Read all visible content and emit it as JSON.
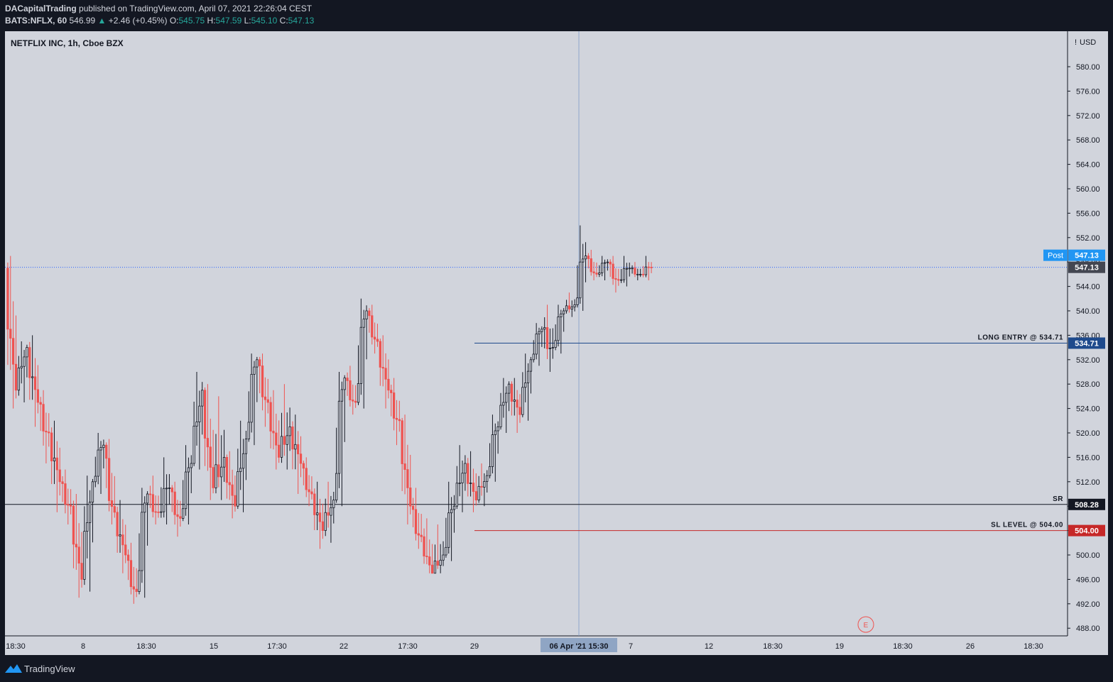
{
  "header": {
    "publisher": "DACapitalTrading",
    "published_text": "published on TradingView.com, April 07, 2021 22:26:04 CEST",
    "symbol": "BATS:NFLX, 60",
    "last": "546.99",
    "change": "+2.46 (+0.45%)",
    "open_label": "O:",
    "open": "545.75",
    "high_label": "H:",
    "high": "547.59",
    "low_label": "L:",
    "low": "545.10",
    "close_label": "C:",
    "close": "547.13"
  },
  "legend": "NETFLIX INC, 1h, Cboe BZX",
  "footer": {
    "brand": "TradingView"
  },
  "colors": {
    "background": "#d1d4dc",
    "up_candle": "#131722",
    "down_candle": "#ef5350",
    "entry_line": "#1e4a8c",
    "sl_line": "#c62828",
    "sr_line": "#131722",
    "post_badge": "#2196f3"
  },
  "chart_data": {
    "type": "candlestick",
    "title": "NETFLIX INC, 1h, Cboe BZX",
    "ylabel": "USD",
    "ylim": [
      486,
      582
    ],
    "y_ticks": [
      "580.00",
      "576.00",
      "572.00",
      "568.00",
      "564.00",
      "560.00",
      "556.00",
      "552.00",
      "548.00",
      "544.00",
      "540.00",
      "536.00",
      "532.00",
      "528.00",
      "524.00",
      "520.00",
      "516.00",
      "512.00",
      "508.00",
      "504.00",
      "500.00",
      "496.00",
      "492.00",
      "488.00"
    ],
    "x_ticks": [
      "18:30",
      "8",
      "18:30",
      "15",
      "17:30",
      "22",
      "17:30",
      "29",
      "06 Apr '21",
      "15:30",
      "7",
      "12",
      "18:30",
      "19",
      "18:30",
      "26",
      "18:30"
    ],
    "crosshair_label": "06 Apr '21   15:30",
    "last_price": 547.13,
    "post_label": "Post",
    "post_price": "547.13",
    "last_price_label": "547.13",
    "levels": [
      {
        "name": "LONG ENTRY @ 534.71",
        "price": 534.71,
        "label": "534.71"
      },
      {
        "name": "SR",
        "price": 508.28,
        "label": "508.28"
      },
      {
        "name": "SL LEVEL @ 504.00",
        "price": 504.0,
        "label": "504.00"
      }
    ],
    "earnings_marker": "E",
    "sessions": [
      {
        "o": 547,
        "c": 527,
        "h": 549,
        "l": 524
      },
      {
        "o": 527,
        "c": 534,
        "h": 535,
        "l": 525
      },
      {
        "o": 534,
        "c": 525,
        "h": 536,
        "l": 521
      },
      {
        "o": 525,
        "c": 520,
        "h": 527,
        "l": 515
      },
      {
        "o": 520,
        "c": 512,
        "h": 522,
        "l": 507
      },
      {
        "o": 512,
        "c": 508,
        "h": 514,
        "l": 505
      },
      {
        "o": 508,
        "c": 496,
        "h": 510,
        "l": 493
      },
      {
        "o": 496,
        "c": 512,
        "h": 513,
        "l": 494
      },
      {
        "o": 512,
        "c": 518,
        "h": 520,
        "l": 510
      },
      {
        "o": 518,
        "c": 507,
        "h": 519,
        "l": 505
      },
      {
        "o": 507,
        "c": 500,
        "h": 509,
        "l": 497
      },
      {
        "o": 500,
        "c": 494,
        "h": 502,
        "l": 492
      },
      {
        "o": 494,
        "c": 510,
        "h": 511,
        "l": 493
      },
      {
        "o": 510,
        "c": 507,
        "h": 513,
        "l": 505
      },
      {
        "o": 507,
        "c": 511,
        "h": 516,
        "l": 505
      },
      {
        "o": 511,
        "c": 506,
        "h": 512,
        "l": 503
      },
      {
        "o": 506,
        "c": 515,
        "h": 518,
        "l": 505
      },
      {
        "o": 515,
        "c": 527,
        "h": 530,
        "l": 514
      },
      {
        "o": 527,
        "c": 511,
        "h": 528,
        "l": 509
      },
      {
        "o": 511,
        "c": 516,
        "h": 526,
        "l": 509
      },
      {
        "o": 516,
        "c": 508,
        "h": 517,
        "l": 506
      },
      {
        "o": 508,
        "c": 519,
        "h": 522,
        "l": 507
      },
      {
        "o": 519,
        "c": 532,
        "h": 533,
        "l": 518
      },
      {
        "o": 532,
        "c": 525,
        "h": 533,
        "l": 521
      },
      {
        "o": 525,
        "c": 516,
        "h": 527,
        "l": 514
      },
      {
        "o": 516,
        "c": 521,
        "h": 528,
        "l": 514
      },
      {
        "o": 521,
        "c": 515,
        "h": 523,
        "l": 510
      },
      {
        "o": 515,
        "c": 510,
        "h": 516,
        "l": 508
      },
      {
        "o": 510,
        "c": 504,
        "h": 512,
        "l": 501
      },
      {
        "o": 504,
        "c": 509,
        "h": 512,
        "l": 502
      },
      {
        "o": 509,
        "c": 529,
        "h": 530,
        "l": 508
      },
      {
        "o": 529,
        "c": 525,
        "h": 531,
        "l": 523
      },
      {
        "o": 525,
        "c": 540,
        "h": 542,
        "l": 524
      },
      {
        "o": 540,
        "c": 535,
        "h": 541,
        "l": 533
      },
      {
        "o": 535,
        "c": 527,
        "h": 536,
        "l": 524
      },
      {
        "o": 527,
        "c": 522,
        "h": 529,
        "l": 518
      },
      {
        "o": 522,
        "c": 508,
        "h": 523,
        "l": 505
      },
      {
        "o": 508,
        "c": 503,
        "h": 511,
        "l": 501
      },
      {
        "o": 503,
        "c": 497,
        "h": 506,
        "l": 497
      },
      {
        "o": 497,
        "c": 500,
        "h": 505,
        "l": 497
      },
      {
        "o": 500,
        "c": 508,
        "h": 512,
        "l": 499
      },
      {
        "o": 508,
        "c": 515,
        "h": 518,
        "l": 507
      },
      {
        "o": 515,
        "c": 509,
        "h": 517,
        "l": 507
      },
      {
        "o": 509,
        "c": 513,
        "h": 515,
        "l": 508
      },
      {
        "o": 513,
        "c": 521,
        "h": 523,
        "l": 512
      },
      {
        "o": 521,
        "c": 528,
        "h": 529,
        "l": 520
      },
      {
        "o": 528,
        "c": 523,
        "h": 529,
        "l": 520
      },
      {
        "o": 523,
        "c": 532,
        "h": 533,
        "l": 522
      },
      {
        "o": 532,
        "c": 537,
        "h": 538,
        "l": 531
      },
      {
        "o": 537,
        "c": 534,
        "h": 541,
        "l": 530
      },
      {
        "o": 534,
        "c": 540,
        "h": 541,
        "l": 533
      },
      {
        "o": 540,
        "c": 541,
        "h": 543,
        "l": 539
      },
      {
        "o": 541,
        "c": 549,
        "h": 554,
        "l": 540
      },
      {
        "o": 549,
        "c": 546,
        "h": 550,
        "l": 545
      },
      {
        "o": 546,
        "c": 548,
        "h": 549,
        "l": 545
      },
      {
        "o": 548,
        "c": 545,
        "h": 549,
        "l": 543
      },
      {
        "o": 545,
        "c": 547,
        "h": 549,
        "l": 544
      },
      {
        "o": 547,
        "c": 546,
        "h": 548,
        "l": 545
      },
      {
        "o": 546,
        "c": 547.13,
        "h": 549,
        "l": 545
      }
    ]
  }
}
